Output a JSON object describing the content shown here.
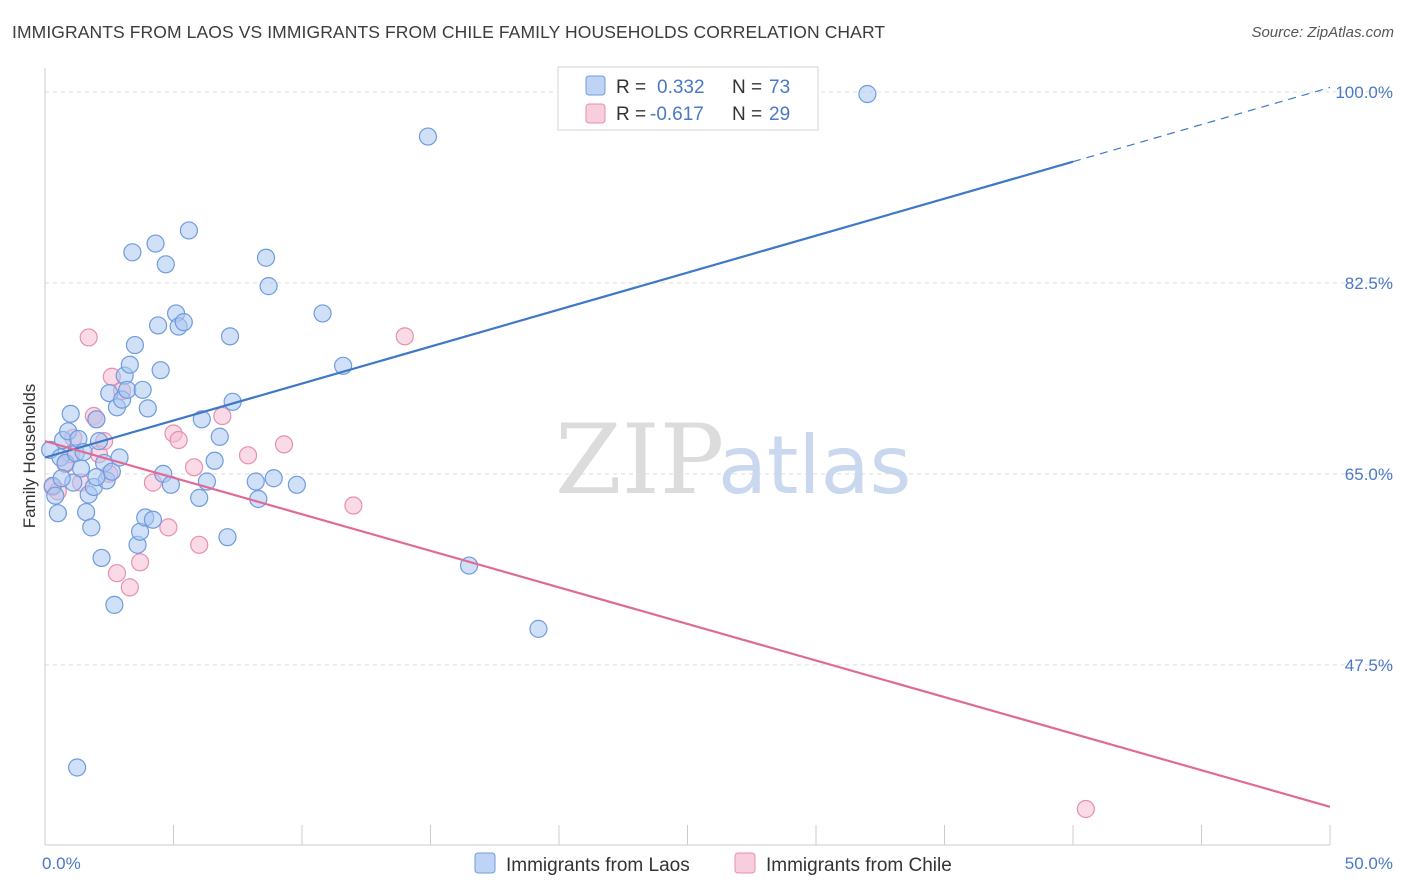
{
  "header": {
    "title": "IMMIGRANTS FROM LAOS VS IMMIGRANTS FROM CHILE FAMILY HOUSEHOLDS CORRELATION CHART",
    "source": "Source: ZipAtlas.com"
  },
  "watermark": {
    "zip": "ZIP",
    "atlas": "atlas"
  },
  "colors": {
    "laos_fill": "#a9c6f0",
    "laos_stroke": "#6f9bde",
    "laos_line": "#3d78c9",
    "chile_fill": "#f6bcd1",
    "chile_stroke": "#e690b0",
    "chile_line": "#e06a96",
    "grid": "#dddddd",
    "axis_text": "#4a78c8"
  },
  "legend": {
    "rows": [
      {
        "r_label": "R =",
        "r_value": "0.332",
        "n_label": "N =",
        "n_value": "73"
      },
      {
        "r_label": "R =",
        "r_value": "-0.617",
        "n_label": "N =",
        "n_value": "29"
      }
    ]
  },
  "bottom_legend": {
    "laos": "Immigrants from Laos",
    "chile": "Immigrants from Chile"
  },
  "chart_data": {
    "type": "scatter",
    "title": "IMMIGRANTS FROM LAOS VS IMMIGRANTS FROM CHILE FAMILY HOUSEHOLDS CORRELATION CHART",
    "xlabel": "",
    "ylabel": "Family Households",
    "xlim": [
      0,
      50
    ],
    "ylim": [
      31,
      102
    ],
    "x_tick_labels": [
      "0.0%",
      "50.0%"
    ],
    "y_ticks": [
      {
        "value": 100,
        "label": "100.0%"
      },
      {
        "value": 82.5,
        "label": "82.5%"
      },
      {
        "value": 65,
        "label": "65.0%"
      },
      {
        "value": 47.5,
        "label": "47.5%"
      }
    ],
    "grid": true,
    "legend_position": "top-center",
    "series": [
      {
        "name": "Immigrants from Laos",
        "r": 0.332,
        "n": 73,
        "trend": {
          "x0": 0,
          "y0": 66.5,
          "x1": 40,
          "y1": 93.6,
          "dashed_to_x": 50,
          "dashed_to_y": 100.4
        },
        "points": [
          [
            0.2,
            67.2
          ],
          [
            0.3,
            63.9
          ],
          [
            0.4,
            63.0
          ],
          [
            0.5,
            61.4
          ],
          [
            0.6,
            66.5
          ],
          [
            0.7,
            68.1
          ],
          [
            0.8,
            66.0
          ],
          [
            0.9,
            68.9
          ],
          [
            1.0,
            70.5
          ],
          [
            1.1,
            64.2
          ],
          [
            1.2,
            66.9
          ],
          [
            1.3,
            68.2
          ],
          [
            1.4,
            65.5
          ],
          [
            1.5,
            67.0
          ],
          [
            1.6,
            61.5
          ],
          [
            1.7,
            63.1
          ],
          [
            1.8,
            60.1
          ],
          [
            1.9,
            63.8
          ],
          [
            2.0,
            70.0
          ],
          [
            2.1,
            68.0
          ],
          [
            2.2,
            57.3
          ],
          [
            2.3,
            66.0
          ],
          [
            2.4,
            64.4
          ],
          [
            2.5,
            72.4
          ],
          [
            2.6,
            65.2
          ],
          [
            2.7,
            53.0
          ],
          [
            2.8,
            71.1
          ],
          [
            2.9,
            66.5
          ],
          [
            3.0,
            71.8
          ],
          [
            3.1,
            74.0
          ],
          [
            3.2,
            72.7
          ],
          [
            3.3,
            75.0
          ],
          [
            3.4,
            85.3
          ],
          [
            3.5,
            76.8
          ],
          [
            3.6,
            58.5
          ],
          [
            3.7,
            59.7
          ],
          [
            3.9,
            61.0
          ],
          [
            4.0,
            71.0
          ],
          [
            4.2,
            60.8
          ],
          [
            4.3,
            86.1
          ],
          [
            4.4,
            78.6
          ],
          [
            4.5,
            74.5
          ],
          [
            4.6,
            65.0
          ],
          [
            4.7,
            84.2
          ],
          [
            4.9,
            64.0
          ],
          [
            5.1,
            79.7
          ],
          [
            5.2,
            78.5
          ],
          [
            5.4,
            78.9
          ],
          [
            5.6,
            87.3
          ],
          [
            6.0,
            62.8
          ],
          [
            6.1,
            70.0
          ],
          [
            6.3,
            64.3
          ],
          [
            6.6,
            66.2
          ],
          [
            6.8,
            68.4
          ],
          [
            7.1,
            59.2
          ],
          [
            7.2,
            77.6
          ],
          [
            7.3,
            71.6
          ],
          [
            8.2,
            64.3
          ],
          [
            8.3,
            62.7
          ],
          [
            8.6,
            84.8
          ],
          [
            8.7,
            82.2
          ],
          [
            8.9,
            64.6
          ],
          [
            9.8,
            64.0
          ],
          [
            10.8,
            79.7
          ],
          [
            11.6,
            74.9
          ],
          [
            14.9,
            95.9
          ],
          [
            16.5,
            56.6
          ],
          [
            19.2,
            50.8
          ],
          [
            32.0,
            99.8
          ],
          [
            1.25,
            38.1
          ],
          [
            0.65,
            64.6
          ],
          [
            3.8,
            72.7
          ],
          [
            2.0,
            64.7
          ]
        ]
      },
      {
        "name": "Immigrants from Chile",
        "r": -0.617,
        "n": 29,
        "trend": {
          "x0": 0,
          "y0": 68.0,
          "x1": 50,
          "y1": 34.5
        },
        "points": [
          [
            0.3,
            63.8
          ],
          [
            0.5,
            63.4
          ],
          [
            0.8,
            65.9
          ],
          [
            1.0,
            66.8
          ],
          [
            1.1,
            68.3
          ],
          [
            1.4,
            64.2
          ],
          [
            1.7,
            77.5
          ],
          [
            1.9,
            70.3
          ],
          [
            2.0,
            70.0
          ],
          [
            2.1,
            66.8
          ],
          [
            2.3,
            68.0
          ],
          [
            2.5,
            65.0
          ],
          [
            2.6,
            73.9
          ],
          [
            2.8,
            55.9
          ],
          [
            3.0,
            72.6
          ],
          [
            3.3,
            54.6
          ],
          [
            3.7,
            56.9
          ],
          [
            4.2,
            64.2
          ],
          [
            4.8,
            60.1
          ],
          [
            5.0,
            68.7
          ],
          [
            5.2,
            68.1
          ],
          [
            5.8,
            65.6
          ],
          [
            6.0,
            58.5
          ],
          [
            6.9,
            70.3
          ],
          [
            7.9,
            66.7
          ],
          [
            9.3,
            67.7
          ],
          [
            12.0,
            62.1
          ],
          [
            14.0,
            77.6
          ],
          [
            40.5,
            34.3
          ]
        ]
      }
    ]
  }
}
